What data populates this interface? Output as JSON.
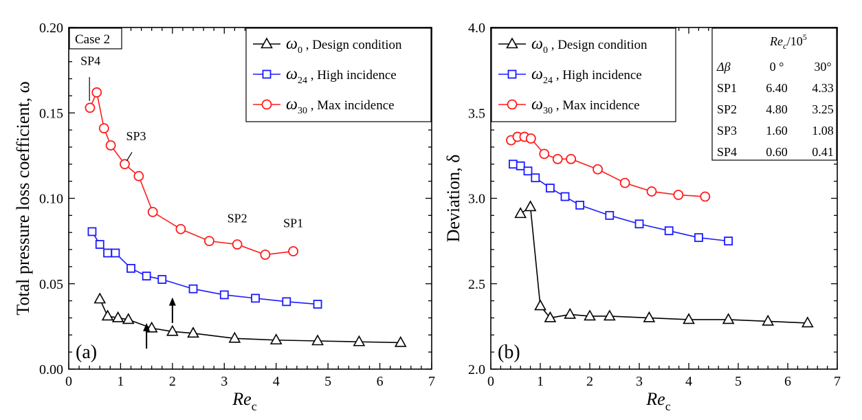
{
  "chart_data": [
    {
      "panel": "(a)",
      "type": "line",
      "ylabel": "Total pressure loss coefficient, ω",
      "xlabel_main": "Re",
      "xlabel_sub": "c",
      "xlim": [
        0,
        7
      ],
      "ylim": [
        0,
        0.2
      ],
      "xticks": [
        0,
        1,
        2,
        3,
        4,
        5,
        6,
        7
      ],
      "xtick_labels": [
        "0",
        "1",
        "2",
        "3",
        "4",
        "5",
        "6",
        "7"
      ],
      "yticks": [
        0,
        0.05,
        0.1,
        0.15,
        0.2
      ],
      "ytick_labels": [
        "0.00",
        "0.05",
        "0.10",
        "0.15",
        "0.20"
      ],
      "case_label": "Case 2",
      "legend_position": "top-right",
      "series": [
        {
          "name": "ω0 , Design condition",
          "sym": "ω",
          "sub": "0",
          "desc": ", Design condition",
          "color": "#000000",
          "marker": "triangle",
          "x": [
            0.6,
            0.75,
            0.95,
            1.15,
            1.6,
            2.0,
            2.4,
            3.2,
            4.0,
            4.8,
            5.6,
            6.4
          ],
          "y": [
            0.041,
            0.031,
            0.03,
            0.029,
            0.024,
            0.022,
            0.021,
            0.018,
            0.017,
            0.0165,
            0.016,
            0.0155
          ]
        },
        {
          "name": "ω24 , High incidence",
          "sym": "ω",
          "sub": "24",
          "desc": ", High incidence",
          "color": "#1a1aff",
          "marker": "square",
          "x": [
            0.45,
            0.6,
            0.75,
            0.9,
            1.2,
            1.5,
            1.8,
            2.4,
            3.0,
            3.6,
            4.2,
            4.8
          ],
          "y": [
            0.0805,
            0.073,
            0.068,
            0.068,
            0.059,
            0.0545,
            0.0525,
            0.047,
            0.0435,
            0.0415,
            0.0395,
            0.038
          ]
        },
        {
          "name": "ω30 , Max incidence",
          "sym": "ω",
          "sub": "30",
          "desc": ", Max incidence",
          "color": "#ff1a1a",
          "marker": "circle",
          "x": [
            0.41,
            0.54,
            0.68,
            0.81,
            1.08,
            1.35,
            1.62,
            2.16,
            2.71,
            3.25,
            3.79,
            4.33
          ],
          "y": [
            0.153,
            0.162,
            0.141,
            0.131,
            0.12,
            0.113,
            0.092,
            0.082,
            0.075,
            0.073,
            0.067,
            0.069
          ]
        }
      ],
      "annotations": [
        {
          "text": "SP4",
          "x": 0.42,
          "y": 0.178
        },
        {
          "text": "SP3",
          "x": 1.3,
          "y": 0.134
        },
        {
          "text": "SP2",
          "x": 3.25,
          "y": 0.086
        },
        {
          "text": "SP1",
          "x": 4.33,
          "y": 0.083
        }
      ],
      "arrows": [
        {
          "x": 1.5,
          "y_from": 0.012,
          "y_to": 0.027
        },
        {
          "x": 2.0,
          "y_from": 0.027,
          "y_to": 0.042
        }
      ]
    },
    {
      "panel": "(b)",
      "type": "line",
      "ylabel": "Deviation, δ",
      "xlabel_main": "Re",
      "xlabel_sub": "c",
      "xlim": [
        0,
        7
      ],
      "ylim": [
        2.0,
        4.0
      ],
      "xticks": [
        0,
        1,
        2,
        3,
        4,
        5,
        6,
        7
      ],
      "xtick_labels": [
        "0",
        "1",
        "2",
        "3",
        "4",
        "5",
        "6",
        "7"
      ],
      "yticks": [
        2.0,
        2.5,
        3.0,
        3.5,
        4.0
      ],
      "ytick_labels": [
        "2.0",
        "2.5",
        "3.0",
        "3.5",
        "4.0"
      ],
      "legend_position": "top-left",
      "series": [
        {
          "name": "ω0 , Design condition",
          "sym": "ω",
          "sub": "0",
          "desc": ", Design condition",
          "color": "#000000",
          "marker": "triangle",
          "x": [
            0.6,
            0.8,
            1.0,
            1.2,
            1.6,
            2.0,
            2.4,
            3.2,
            4.0,
            4.8,
            5.6,
            6.4
          ],
          "y": [
            2.91,
            2.95,
            2.37,
            2.3,
            2.32,
            2.31,
            2.31,
            2.3,
            2.29,
            2.29,
            2.28,
            2.27
          ]
        },
        {
          "name": "ω24 , High incidence",
          "sym": "ω",
          "sub": "24",
          "desc": ", High incidence",
          "color": "#1a1aff",
          "marker": "square",
          "x": [
            0.45,
            0.6,
            0.75,
            0.9,
            1.2,
            1.5,
            1.8,
            2.4,
            3.0,
            3.6,
            4.2,
            4.8
          ],
          "y": [
            3.2,
            3.19,
            3.16,
            3.12,
            3.06,
            3.01,
            2.96,
            2.9,
            2.85,
            2.81,
            2.77,
            2.75
          ]
        },
        {
          "name": "ω30 , Max incidence",
          "sym": "ω",
          "sub": "30",
          "desc": ", Max incidence",
          "color": "#ff1a1a",
          "marker": "circle",
          "x": [
            0.41,
            0.54,
            0.68,
            0.81,
            1.08,
            1.35,
            1.62,
            2.16,
            2.71,
            3.25,
            3.79,
            4.33
          ],
          "y": [
            3.34,
            3.36,
            3.36,
            3.35,
            3.26,
            3.23,
            3.23,
            3.17,
            3.09,
            3.04,
            3.02,
            3.01
          ]
        }
      ],
      "table": {
        "header_main": "Re",
        "header_sub": "c",
        "header_suffix": "/10",
        "header_sup": "5",
        "row_header": "Δβ",
        "columns": [
          "0 °",
          "30°"
        ],
        "rows": [
          {
            "label": "SP1",
            "values": [
              "6.40",
              "4.33"
            ]
          },
          {
            "label": "SP2",
            "values": [
              "4.80",
              "3.25"
            ]
          },
          {
            "label": "SP3",
            "values": [
              "1.60",
              "1.08"
            ]
          },
          {
            "label": "SP4",
            "values": [
              "0.60",
              "0.41"
            ]
          }
        ]
      }
    }
  ]
}
